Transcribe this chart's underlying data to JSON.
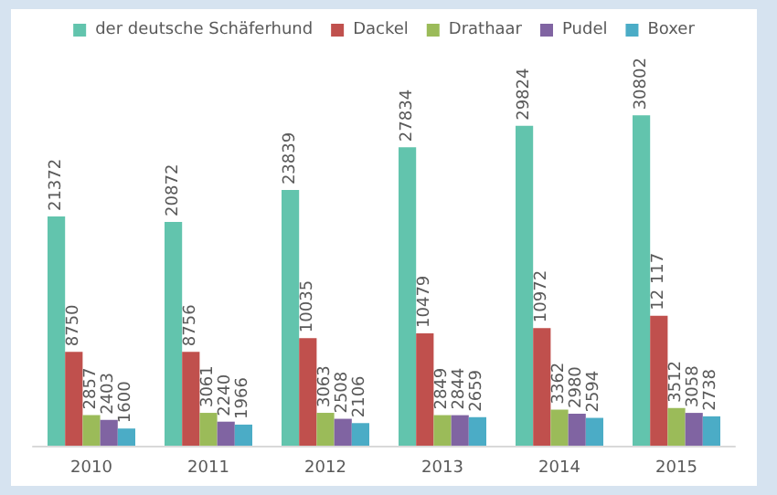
{
  "chart_data": {
    "type": "bar",
    "categories": [
      "2010",
      "2011",
      "2012",
      "2013",
      "2014",
      "2015"
    ],
    "series": [
      {
        "name": "der deutsche Schäferhund",
        "color": "#62c4ad",
        "values": [
          21372,
          20872,
          23839,
          27834,
          29824,
          30802
        ],
        "value_labels": [
          "21372",
          "20872",
          "23839",
          "27834",
          "29824",
          "30802"
        ]
      },
      {
        "name": "Dackel",
        "color": "#c0504d",
        "values": [
          8750,
          8756,
          10035,
          10479,
          10972,
          12117
        ],
        "value_labels": [
          "8750",
          "8756",
          "10035",
          "10479",
          "10972",
          "12 117"
        ]
      },
      {
        "name": "Drathaar",
        "color": "#9bbb59",
        "values": [
          2857,
          3061,
          3063,
          2849,
          3362,
          3512
        ],
        "value_labels": [
          "2857",
          "3061",
          "3063",
          "2849",
          "3362",
          "3512"
        ]
      },
      {
        "name": "Pudel",
        "color": "#8064a2",
        "values": [
          2403,
          2240,
          2508,
          2844,
          2980,
          3058
        ],
        "value_labels": [
          "2403",
          "2240",
          "2508",
          "2844",
          "2980",
          "3058"
        ]
      },
      {
        "name": "Boxer",
        "color": "#4bacc6",
        "values": [
          1600,
          1966,
          2106,
          2659,
          2594,
          2738
        ],
        "value_labels": [
          "1600",
          "1966",
          "2106",
          "2659",
          "2594",
          "2738"
        ]
      }
    ],
    "legend": "top",
    "grid": false
  }
}
